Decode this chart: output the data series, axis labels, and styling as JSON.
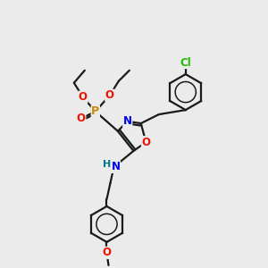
{
  "bg_color": "#ebebeb",
  "bond_color": "#1a1a1a",
  "atom_colors": {
    "O": "#ee1100",
    "N": "#0000ee",
    "P": "#cc8800",
    "Cl": "#22bb00",
    "H": "#007788",
    "C": "#1a1a1a"
  },
  "lw": 1.6
}
